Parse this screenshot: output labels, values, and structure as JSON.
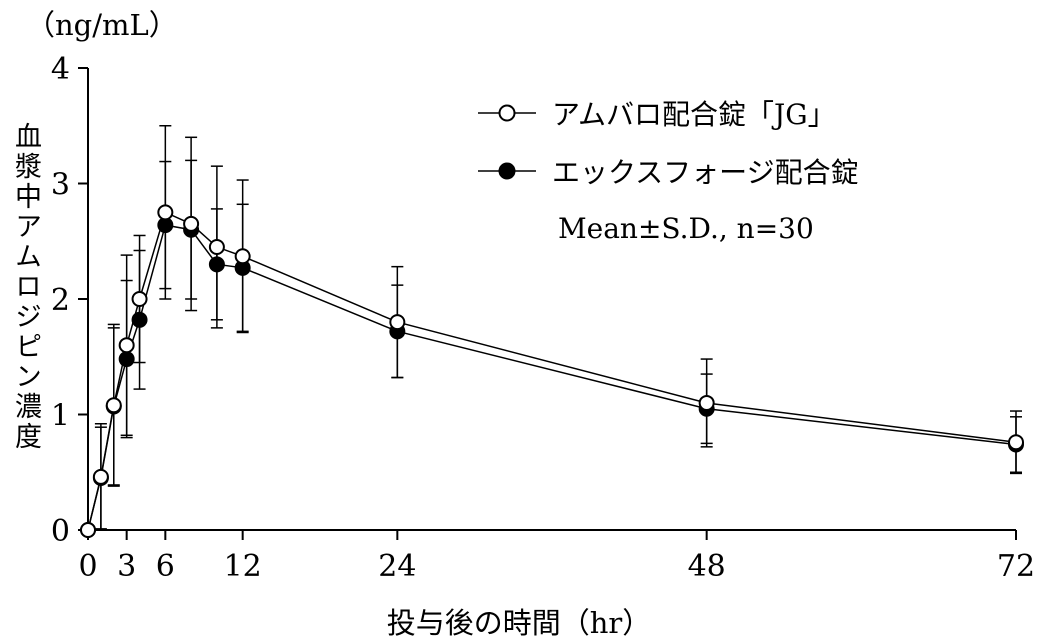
{
  "chart_data": {
    "type": "line",
    "title": "",
    "xlabel": "投与後の時間（hr）",
    "ylabel": "血漿中アムロジピン濃度",
    "y_unit": "（ng/mL）",
    "legend_note": "Mean±S.D., n=30",
    "xlim": [
      0,
      72
    ],
    "ylim": [
      0,
      4
    ],
    "x_ticks": [
      0,
      3,
      6,
      12,
      24,
      48,
      72
    ],
    "y_ticks": [
      0,
      1,
      2,
      3,
      4
    ],
    "grid": false,
    "legend_position": "upper-right-inside",
    "error_bars": "±S.D. with caps",
    "series": [
      {
        "name": "アムバロ配合錠「JG」",
        "marker": "open-circle",
        "color": "#000000",
        "x": [
          0,
          1,
          2,
          3,
          4,
          6,
          8,
          10,
          12,
          24,
          48,
          72
        ],
        "y": [
          0,
          0.46,
          1.08,
          1.6,
          2.0,
          2.75,
          2.65,
          2.45,
          2.37,
          1.8,
          1.1,
          0.76
        ],
        "sd": [
          0,
          0.46,
          0.7,
          0.78,
          0.55,
          0.75,
          0.75,
          0.7,
          0.66,
          0.48,
          0.38,
          0.27
        ]
      },
      {
        "name": "エックスフォージ配合錠",
        "marker": "filled-circle",
        "color": "#000000",
        "x": [
          0,
          1,
          2,
          3,
          4,
          6,
          8,
          10,
          12,
          24,
          48,
          72
        ],
        "y": [
          0,
          0.45,
          1.07,
          1.48,
          1.82,
          2.64,
          2.6,
          2.3,
          2.27,
          1.72,
          1.05,
          0.74
        ],
        "sd": [
          0,
          0.44,
          0.68,
          0.68,
          0.6,
          0.55,
          0.6,
          0.48,
          0.55,
          0.4,
          0.3,
          0.24
        ]
      }
    ]
  }
}
